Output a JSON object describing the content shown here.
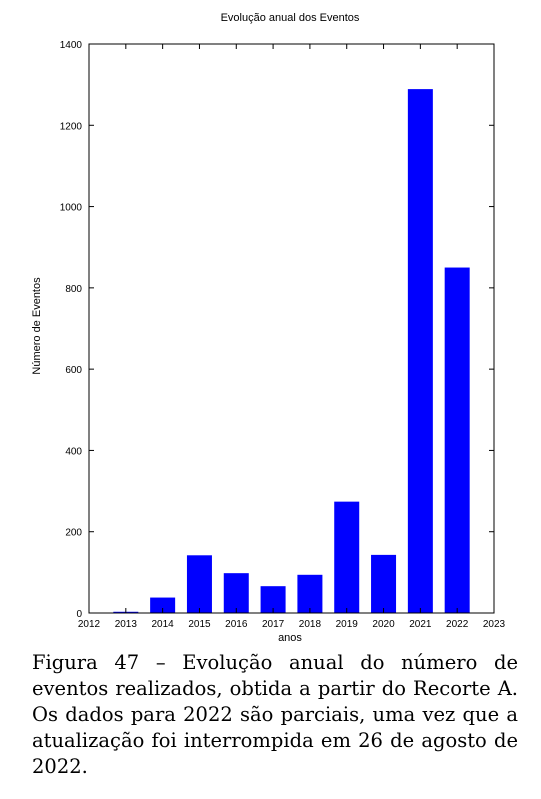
{
  "chart_data": {
    "type": "bar",
    "title": "Evolução anual dos Eventos",
    "xlabel": "anos",
    "ylabel": "Número de Eventos",
    "x_ticks": [
      "2012",
      "2013",
      "2014",
      "2015",
      "2016",
      "2017",
      "2018",
      "2019",
      "2020",
      "2021",
      "2022",
      "2023"
    ],
    "y_ticks": [
      "0",
      "200",
      "400",
      "600",
      "800",
      "1000",
      "1200",
      "1400"
    ],
    "xlim": [
      2012,
      2023
    ],
    "ylim": [
      0,
      1400
    ],
    "categories": [
      "2013",
      "2014",
      "2015",
      "2016",
      "2017",
      "2018",
      "2019",
      "2020",
      "2021",
      "2022"
    ],
    "values": [
      3,
      38,
      142,
      98,
      66,
      94,
      274,
      143,
      1289,
      850
    ],
    "bar_color": "#0000ff",
    "grid": false,
    "legend": "none"
  },
  "caption": "Figura 47 – Evolução anual do número de eventos realizados, obtida a partir do Recorte A. Os dados para 2022 são parciais, uma vez que a atualização foi interrompida em 26 de agosto de 2022."
}
